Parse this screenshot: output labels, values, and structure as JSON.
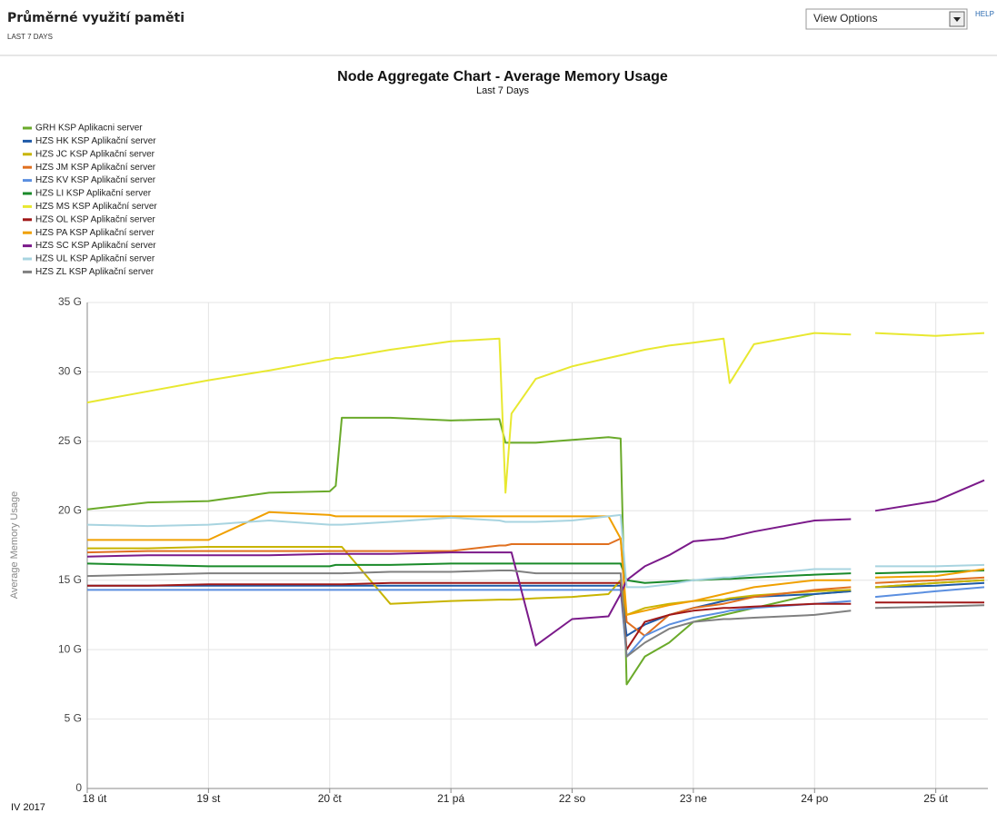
{
  "header": {
    "title": "Průměrné využití paměti",
    "subtitle": "LAST 7 DAYS",
    "view_options": "View Options",
    "help": "HELP"
  },
  "chart_data": {
    "type": "line",
    "title": "Node Aggregate Chart - Average Memory Usage",
    "subtitle": "Last 7 Days",
    "ylabel": "Average Memory Usage",
    "x_period": "IV 2017",
    "legend": "top-left",
    "grid": true,
    "xlim": [
      18,
      25.43
    ],
    "xticks": [
      {
        "value": 18,
        "label": "18 út"
      },
      {
        "value": 19,
        "label": "19 st"
      },
      {
        "value": 20,
        "label": "20 čt"
      },
      {
        "value": 21,
        "label": "21 pá"
      },
      {
        "value": 22,
        "label": "22 so"
      },
      {
        "value": 23,
        "label": "23 ne"
      },
      {
        "value": 24,
        "label": "24 po"
      },
      {
        "value": 25,
        "label": "25 út"
      }
    ],
    "ylim": [
      0,
      35
    ],
    "yticks": [
      0,
      {
        "value": 5,
        "label": "5 G"
      },
      {
        "value": 10,
        "label": "10 G"
      },
      {
        "value": 15,
        "label": "15 G"
      },
      {
        "value": 20,
        "label": "20 G"
      },
      {
        "value": 25,
        "label": "25 G"
      },
      {
        "value": 30,
        "label": "30 G"
      },
      {
        "value": 35,
        "label": "35 G"
      }
    ],
    "x": [
      18,
      18.5,
      19,
      19.5,
      20,
      20.05,
      20.1,
      20.5,
      21,
      21.4,
      21.45,
      21.5,
      21.7,
      22,
      22.3,
      22.4,
      22.45,
      22.6,
      22.8,
      23,
      23.25,
      23.3,
      23.5,
      24,
      24.3,
      24.4,
      24.5,
      25,
      25.4
    ],
    "series": [
      {
        "name": "GRH KSP Aplikacni server",
        "color": "#6aaa2a",
        "values": [
          20.1,
          20.6,
          20.7,
          21.3,
          21.4,
          21.8,
          26.7,
          26.7,
          26.5,
          26.6,
          24.9,
          24.9,
          24.9,
          25.1,
          25.3,
          25.2,
          7.5,
          9.5,
          10.5,
          12,
          12.5,
          12.6,
          13,
          14,
          14.2,
          null,
          14.5,
          14.8,
          15
        ]
      },
      {
        "name": "HZS HK KSP Aplikační server",
        "color": "#1f5aa8",
        "values": [
          14.6,
          14.6,
          14.6,
          14.6,
          14.6,
          14.6,
          14.6,
          14.6,
          14.6,
          14.6,
          14.6,
          14.6,
          14.6,
          14.6,
          14.6,
          14.6,
          11,
          11.8,
          12.5,
          13,
          13.5,
          13.6,
          13.8,
          14,
          14.2,
          null,
          14.5,
          14.6,
          14.8
        ]
      },
      {
        "name": "HZS JC KSP Aplikační server",
        "color": "#c8b400",
        "values": [
          17.3,
          17.3,
          17.4,
          17.4,
          17.4,
          17.4,
          17.4,
          13.3,
          13.5,
          13.6,
          13.6,
          13.6,
          13.7,
          13.8,
          14,
          15,
          12.5,
          13,
          13.3,
          13.5,
          13.6,
          13.7,
          13.9,
          14.2,
          14.3,
          null,
          14.5,
          14.8,
          15
        ]
      },
      {
        "name": "HZS JM KSP Aplikační server",
        "color": "#e07020",
        "values": [
          17,
          17.1,
          17.1,
          17.1,
          17.1,
          17.1,
          17.1,
          17.1,
          17.1,
          17.5,
          17.5,
          17.6,
          17.6,
          17.6,
          17.6,
          18,
          12,
          11,
          12.5,
          13,
          13.3,
          13.4,
          13.8,
          14.3,
          14.5,
          null,
          14.8,
          15,
          15.2
        ]
      },
      {
        "name": "HZS KV KSP Aplikační server",
        "color": "#5b8fe0",
        "values": [
          14.3,
          14.3,
          14.3,
          14.3,
          14.3,
          14.3,
          14.3,
          14.3,
          14.3,
          14.3,
          14.3,
          14.3,
          14.3,
          14.3,
          14.3,
          14.3,
          9.5,
          11,
          11.8,
          12.3,
          12.7,
          12.8,
          13,
          13.3,
          13.5,
          null,
          13.8,
          14.2,
          14.5
        ]
      },
      {
        "name": "HZS LI KSP Aplikační server",
        "color": "#1a8a2a",
        "values": [
          16.2,
          16.1,
          16,
          16,
          16,
          16.1,
          16.1,
          16.1,
          16.2,
          16.2,
          16.2,
          16.2,
          16.2,
          16.2,
          16.2,
          16.2,
          15,
          14.8,
          14.9,
          15,
          15.1,
          15.1,
          15.2,
          15.4,
          15.5,
          null,
          15.5,
          15.6,
          15.7
        ]
      },
      {
        "name": "HZS MS KSP Aplikační server",
        "color": "#e8e830",
        "values": [
          27.8,
          28.6,
          29.4,
          30.1,
          30.9,
          31,
          31,
          31.6,
          32.2,
          32.4,
          21.3,
          27,
          29.5,
          30.4,
          31,
          31.2,
          31.3,
          31.6,
          31.9,
          32.1,
          32.4,
          29.2,
          32,
          32.8,
          32.7,
          null,
          32.8,
          32.6,
          32.8
        ]
      },
      {
        "name": "HZS OL KSP Aplikační server",
        "color": "#a01818",
        "values": [
          14.6,
          14.6,
          14.7,
          14.7,
          14.7,
          14.7,
          14.7,
          14.8,
          14.8,
          14.8,
          14.8,
          14.8,
          14.8,
          14.8,
          14.8,
          14.8,
          10,
          12,
          12.5,
          12.8,
          13,
          13,
          13.1,
          13.3,
          13.3,
          null,
          13.4,
          13.4,
          13.4
        ]
      },
      {
        "name": "HZS PA KSP Aplikační server",
        "color": "#f0a000",
        "values": [
          17.9,
          17.9,
          17.9,
          19.9,
          19.7,
          19.6,
          19.6,
          19.6,
          19.6,
          19.6,
          19.6,
          19.6,
          19.6,
          19.6,
          19.6,
          18,
          12.5,
          12.8,
          13.2,
          13.5,
          14,
          14.1,
          14.5,
          15,
          15,
          null,
          15.2,
          15.3,
          15.8
        ]
      },
      {
        "name": "HZS SC KSP Aplikační server",
        "color": "#7b1a8a",
        "values": [
          16.7,
          16.8,
          16.8,
          16.8,
          16.9,
          16.9,
          16.9,
          16.9,
          17,
          17,
          17,
          17,
          10.3,
          12.2,
          12.4,
          14,
          15,
          16,
          16.8,
          17.8,
          18,
          18.1,
          18.5,
          19.3,
          19.4,
          null,
          20,
          20.7,
          22.2
        ]
      },
      {
        "name": "HZS UL KSP Aplikační server",
        "color": "#a8d4e0",
        "values": [
          19,
          18.9,
          19,
          19.3,
          19,
          19,
          19,
          19.2,
          19.5,
          19.3,
          19.2,
          19.2,
          19.2,
          19.3,
          19.6,
          19.7,
          14.5,
          14.5,
          14.7,
          15,
          15.2,
          15.2,
          15.4,
          15.8,
          15.8,
          null,
          16,
          16,
          16.1
        ]
      },
      {
        "name": "HZS ZL KSP Aplikační server",
        "color": "#808080",
        "values": [
          15.3,
          15.4,
          15.5,
          15.5,
          15.5,
          15.5,
          15.5,
          15.6,
          15.6,
          15.7,
          15.7,
          15.7,
          15.5,
          15.5,
          15.5,
          15.5,
          9.5,
          10.5,
          11.5,
          12,
          12.2,
          12.2,
          12.3,
          12.5,
          12.8,
          null,
          13,
          13.1,
          13.2
        ]
      }
    ]
  }
}
